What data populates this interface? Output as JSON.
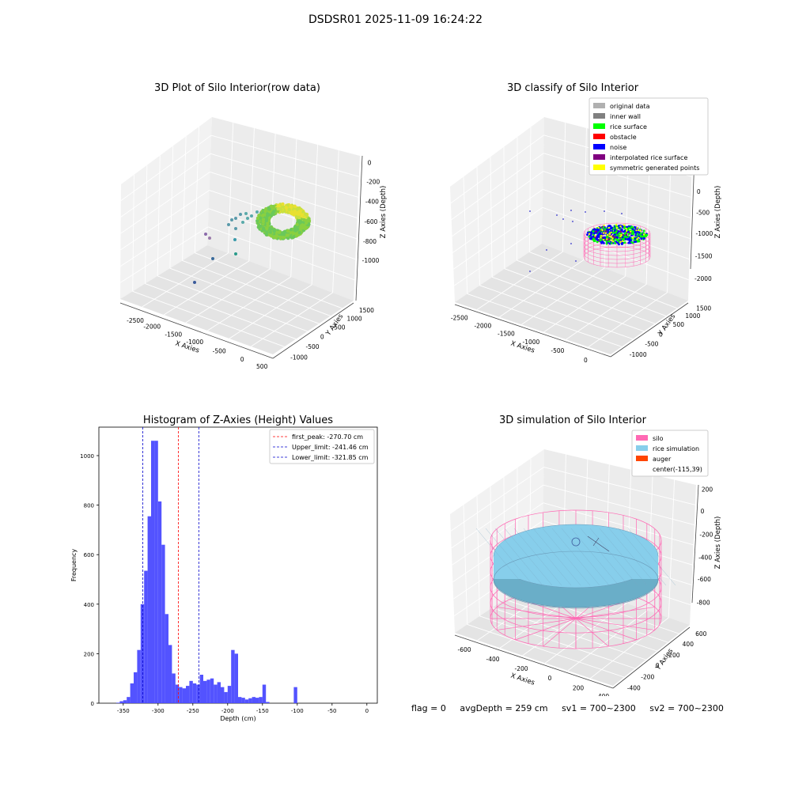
{
  "suptitle": "DSDSR01 2025-11-09 16:24:22",
  "colors": {
    "hist_bar": "#4a4aff",
    "first_peak": "#ff0000",
    "limits": "#0000cc",
    "silo": "#ff69b4",
    "rice": "#87ceeb",
    "auger": "#ff4500",
    "rice_surface": "#00ff00",
    "noise": "#0000ff",
    "interp": "#800080",
    "symmetric": "#ffff00"
  },
  "footer": {
    "flag": "flag = 0",
    "avg_depth": "avgDepth = 259 cm",
    "sv1": "sv1 = 700~2300",
    "sv2": "sv2 = 700~2300"
  },
  "chart_data": [
    {
      "type": "scatter",
      "title": "3D Plot of Silo Interior(row data)",
      "xlabel": "X Axies",
      "ylabel": "Y Axies",
      "zlabel": "Z Axies (Depth)",
      "x_ticks": [
        "-2500",
        "-2000",
        "-1500",
        "-1000",
        "-500",
        "0",
        "500"
      ],
      "y_ticks": [
        "-1000",
        "-500",
        "0",
        "500",
        "1000",
        "1500"
      ],
      "z_ticks": [
        "0",
        "-200",
        "-400",
        "-600",
        "-800",
        "-1000"
      ],
      "xlim": [
        -2700,
        500
      ],
      "ylim": [
        -1000,
        1700
      ],
      "zlim": [
        -1150,
        0
      ]
    },
    {
      "type": "scatter",
      "title": "3D classify of Silo Interior",
      "xlabel": "X Axies",
      "ylabel": "Y Axies",
      "zlabel": "Z Axies (Depth)",
      "x_ticks": [
        "-2500",
        "-2000",
        "-1500",
        "-1000",
        "-500",
        "0"
      ],
      "y_ticks": [
        "-1000",
        "-500",
        "0",
        "500",
        "1000",
        "1500"
      ],
      "z_ticks": [
        "500",
        "0",
        "-500",
        "-1000",
        "-1500",
        "-2000"
      ],
      "legend_position": "upper right",
      "legend": [
        {
          "label": "original data",
          "color": "#b0b0b0"
        },
        {
          "label": "inner wall",
          "color": "#808080"
        },
        {
          "label": "rice surface",
          "color": "#00ff00"
        },
        {
          "label": "obstacle",
          "color": "#ff0000"
        },
        {
          "label": "noise",
          "color": "#0000ff"
        },
        {
          "label": "interpolated rice surface",
          "color": "#800080"
        },
        {
          "label": "symmetric generated points",
          "color": "#ffff00"
        }
      ]
    },
    {
      "type": "bar",
      "title": "Histogram of Z-Axies (Height) Values",
      "xlabel": "Depth (cm)",
      "ylabel": "Frequency",
      "xlim": [
        -385,
        15
      ],
      "ylim": [
        0,
        1115
      ],
      "x_ticks": [
        -350,
        -300,
        -250,
        -200,
        -150,
        -100,
        -50,
        0
      ],
      "y_ticks": [
        0,
        200,
        400,
        600,
        800,
        1000
      ],
      "bin_start": -360,
      "bin_width": 5,
      "values": [
        2,
        8,
        12,
        25,
        80,
        125,
        215,
        400,
        535,
        755,
        1060,
        1060,
        815,
        640,
        360,
        235,
        120,
        75,
        65,
        60,
        70,
        90,
        80,
        75,
        115,
        90,
        95,
        100,
        75,
        85,
        65,
        45,
        70,
        215,
        200,
        25,
        22,
        15,
        20,
        25,
        22,
        25,
        75,
        5,
        0,
        0,
        0,
        0,
        0,
        0,
        0,
        65
      ],
      "lines": [
        {
          "name": "first_peak: -270.70 cm",
          "value": -270.7,
          "color": "#ff0000"
        },
        {
          "name": "Upper_limit: -241.46 cm",
          "value": -241.46,
          "color": "#0000cc"
        },
        {
          "name": "Lower_limit: -321.85 cm",
          "value": -321.85,
          "color": "#0000cc"
        }
      ],
      "legend_position": "upper right"
    },
    {
      "type": "scatter",
      "title": "3D simulation of Silo Interior",
      "xlabel": "X Axies",
      "ylabel": "Y Axies",
      "zlabel": "Z Axies (Depth)",
      "x_ticks": [
        "-600",
        "-400",
        "-200",
        "0",
        "200",
        "400"
      ],
      "y_ticks": [
        "-400",
        "-200",
        "0",
        "200",
        "400",
        "600"
      ],
      "z_ticks": [
        "200",
        "0",
        "-200",
        "-400",
        "-600",
        "-800"
      ],
      "legend_position": "upper right",
      "legend": [
        {
          "label": "silo",
          "color": "#ff69b4"
        },
        {
          "label": "rice simulation",
          "color": "#87ceeb"
        },
        {
          "label": "auger",
          "color": "#ff4500"
        },
        {
          "label": "center(-115,39)",
          "color": ""
        }
      ]
    }
  ]
}
